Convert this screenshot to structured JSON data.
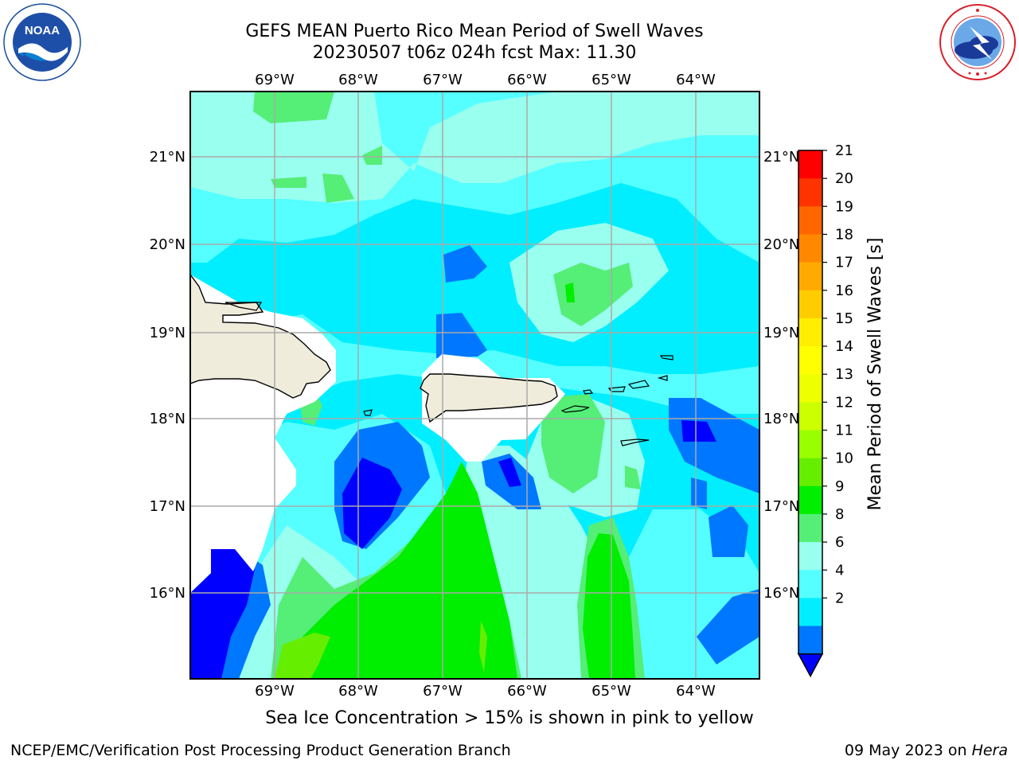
{
  "title": {
    "line1": "GEFS MEAN Puerto Rico Mean Period of Swell Waves",
    "line2": "20230507 t06z 024h fcst   Max: 11.30"
  },
  "map": {
    "lon_labels": [
      "69°W",
      "68°W",
      "67°W",
      "66°W",
      "65°W",
      "64°W"
    ],
    "lat_labels": [
      "21°N",
      "20°N",
      "19°N",
      "18°N",
      "17°N",
      "16°N"
    ],
    "land_color": "#efecdc",
    "masked_color": "#ffffff"
  },
  "colorbar": {
    "label": "Mean Period of Swell Waves [s]",
    "ticks": [
      "21",
      "20",
      "19",
      "18",
      "17",
      "16",
      "15",
      "14",
      "13",
      "12",
      "11",
      "10",
      "9",
      "8",
      "6",
      "4",
      "2"
    ],
    "colors": [
      "#ff0000",
      "#ff3300",
      "#ff6600",
      "#ff8800",
      "#ffaa00",
      "#ffcc00",
      "#ffee00",
      "#ffff00",
      "#eeff00",
      "#ccff00",
      "#99ff00",
      "#66ee00",
      "#00ee00",
      "#55ee77",
      "#99ffee",
      "#55ffff",
      "#00eeff",
      "#0077ff",
      "#0000ff"
    ]
  },
  "note": "Sea Ice Concentration > 15% is shown in pink to yellow",
  "footer": {
    "left": "NCEP/EMC/Verification Post Processing Product Generation Branch",
    "date": "09 May 2023 on ",
    "machine": "Hera"
  },
  "logos": {
    "noaa_text": "NOAA",
    "noaa_ring": "NATIONAL OCEANIC AND ATMOSPHERIC ADMINISTRATION",
    "nws_ring": "NATIONAL WEATHER SERVICE"
  }
}
